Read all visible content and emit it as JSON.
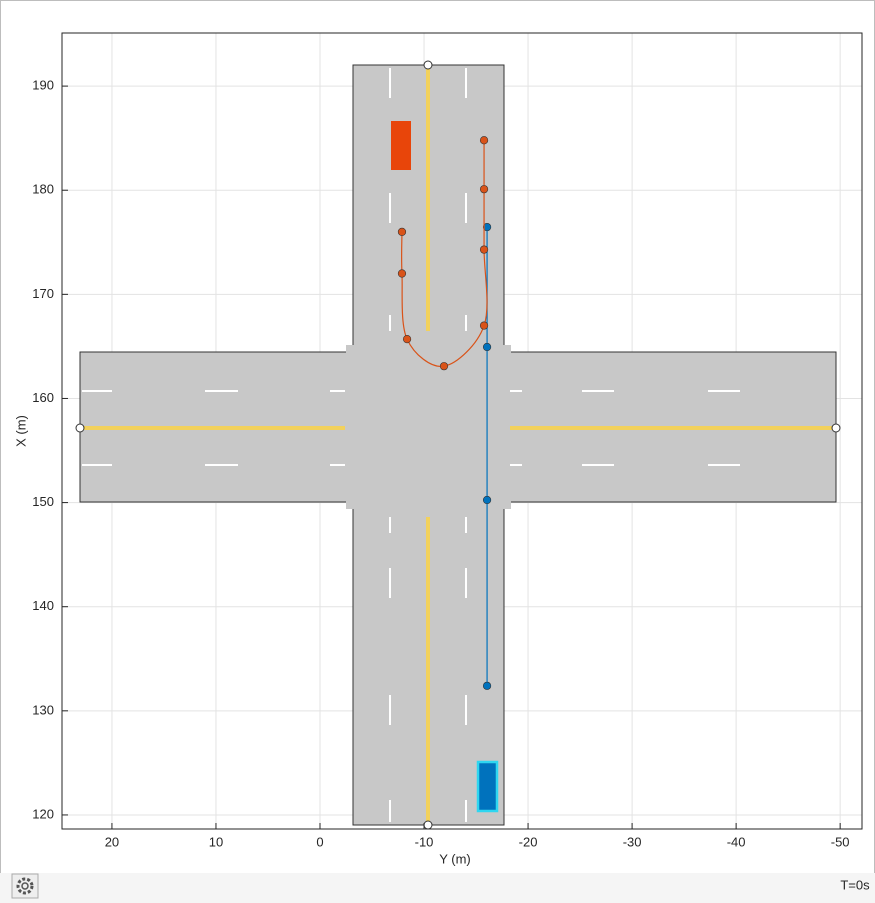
{
  "chart_data": {
    "type": "scenario",
    "xlabel": "Y (m)",
    "ylabel": "X (m)",
    "annotation": "T=0s",
    "xlim": [
      24.8,
      -52.1
    ],
    "ylim": [
      118.65,
      195.1
    ],
    "xticks": [
      20,
      10,
      0,
      -10,
      -20,
      -30,
      -40,
      -50
    ],
    "yticks": [
      120,
      130,
      140,
      150,
      160,
      170,
      180,
      190
    ],
    "grid": true,
    "series": [
      {
        "color": "#0072bd",
        "x": [
          -16.06,
          -16.06,
          -16.06,
          -16.06
        ],
        "values": [
          132.4,
          150.25,
          164.94,
          176.46
        ]
      },
      {
        "color": "#d95319",
        "x": [
          -15.77,
          -15.77,
          -15.77,
          -15.77,
          -11.92,
          -8.37,
          -7.88,
          -7.88
        ],
        "values": [
          184.8,
          180.1,
          174.3,
          167.0,
          163.1,
          165.7,
          172.0,
          176.0
        ]
      }
    ]
  }
}
